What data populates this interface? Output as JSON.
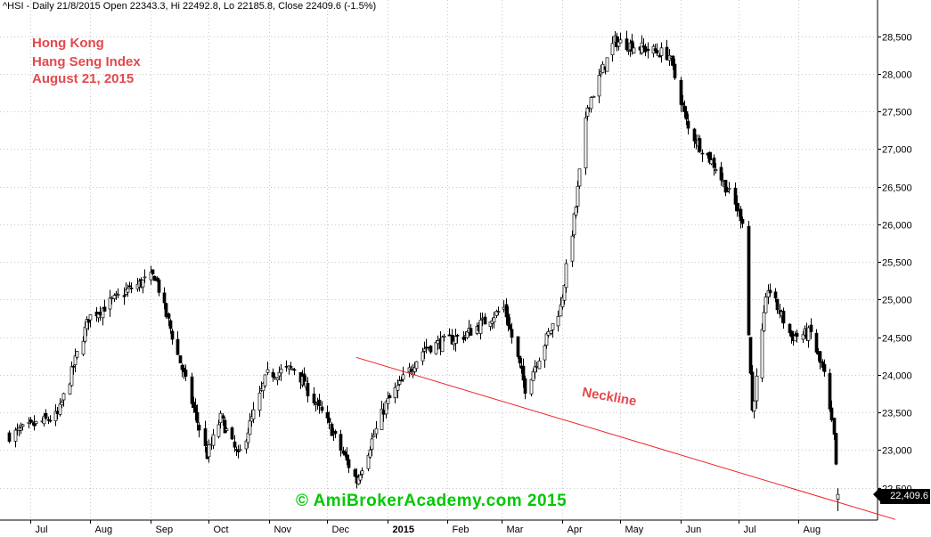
{
  "header": {
    "text": "^HSI - Daily 21/8/2015 Open 22343.3, Hi 22492.8, Lo 22185.8, Close 22409.6 (-1.5%)"
  },
  "notes": {
    "line1": "Hong Kong",
    "line2": "Hang Seng Index",
    "line3": "August 21, 2015"
  },
  "neckline_label": "Neckline",
  "watermark": "© AmiBrokerAcademy.com 2015",
  "last_price_label": "22,409.6",
  "colors": {
    "annotation": "#e4484c",
    "neckline": "#ee1c24",
    "watermark": "#00c800",
    "candles": "#000000",
    "grid": "#c8c8c8"
  },
  "chart_data": {
    "type": "candlestick",
    "symbol": "^HSI",
    "ylim": [
      22200,
      28700
    ],
    "y_ticks": [
      22500,
      23000,
      23500,
      24000,
      24500,
      25000,
      25500,
      26000,
      26500,
      27000,
      27500,
      28000,
      28500
    ],
    "y_tick_labels": [
      "22,500",
      "23,000",
      "23,500",
      "24,000",
      "24,500",
      "25,000",
      "25,500",
      "26,000",
      "26,500",
      "27,000",
      "27,500",
      "28,000",
      "28,500"
    ],
    "x_labels": [
      "Jul",
      "Aug",
      "Sep",
      "Oct",
      "Nov",
      "Dec",
      "2015",
      "Feb",
      "Mar",
      "Apr",
      "May",
      "Jun",
      "Jul",
      "Aug"
    ],
    "grid": "dotted",
    "key_closes": [
      {
        "date": "2014-06-20",
        "close": 23194
      },
      {
        "date": "2014-07-15",
        "close": 23459
      },
      {
        "date": "2014-07-31",
        "close": 24756
      },
      {
        "date": "2014-08-20",
        "close": 25122
      },
      {
        "date": "2014-09-03",
        "close": 25318
      },
      {
        "date": "2014-09-30",
        "close": 22933
      },
      {
        "date": "2014-10-07",
        "close": 23422
      },
      {
        "date": "2014-10-16",
        "close": 22900
      },
      {
        "date": "2014-10-31",
        "close": 23998
      },
      {
        "date": "2014-11-14",
        "close": 24088
      },
      {
        "date": "2014-12-01",
        "close": 23367
      },
      {
        "date": "2014-12-16",
        "close": 22585
      },
      {
        "date": "2014-12-31",
        "close": 23605
      },
      {
        "date": "2015-01-20",
        "close": 24352
      },
      {
        "date": "2015-02-10",
        "close": 24529
      },
      {
        "date": "2015-03-02",
        "close": 24887
      },
      {
        "date": "2015-03-13",
        "close": 23823
      },
      {
        "date": "2015-03-31",
        "close": 24900
      },
      {
        "date": "2015-04-08",
        "close": 26236
      },
      {
        "date": "2015-04-14",
        "close": 27561
      },
      {
        "date": "2015-04-28",
        "close": 28433
      },
      {
        "date": "2015-05-26",
        "close": 28250
      },
      {
        "date": "2015-06-05",
        "close": 27260
      },
      {
        "date": "2015-06-19",
        "close": 26760
      },
      {
        "date": "2015-06-29",
        "close": 26250
      },
      {
        "date": "2015-07-03",
        "close": 26064
      },
      {
        "date": "2015-07-08",
        "close": 23516
      },
      {
        "date": "2015-07-16",
        "close": 25162
      },
      {
        "date": "2015-07-28",
        "close": 24503
      },
      {
        "date": "2015-08-07",
        "close": 24552
      },
      {
        "date": "2015-08-14",
        "close": 23991
      },
      {
        "date": "2015-08-19",
        "close": 23167
      },
      {
        "date": "2015-08-20",
        "close": 22757
      },
      {
        "date": "2015-08-21",
        "open": 22343.3,
        "high": 22492.8,
        "low": 22185.8,
        "close": 22409.6
      }
    ],
    "neckline": {
      "start": {
        "date": "2014-12-16",
        "value": 24230
      },
      "end": {
        "date": "2015-08-31",
        "value": 22230
      }
    }
  }
}
